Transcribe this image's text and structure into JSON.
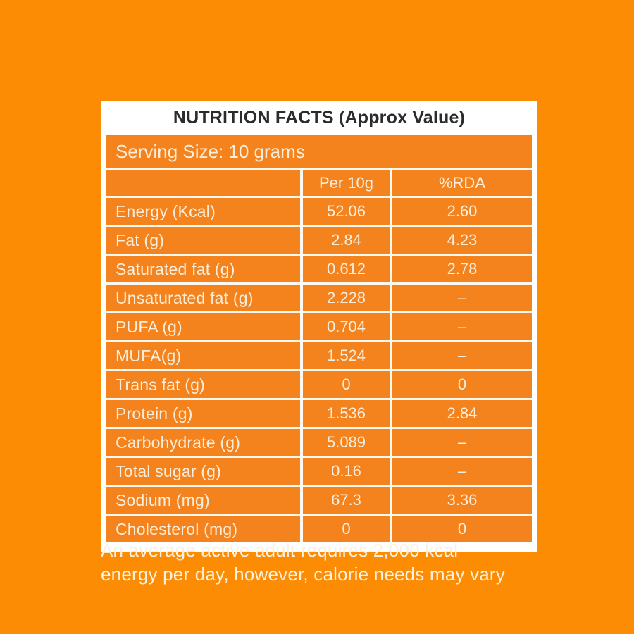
{
  "colors": {
    "page_background": "#FB8C04",
    "card_orange": "#F4831E",
    "card_border_white": "#FFFFFF",
    "grid_line": "#FDF9F1",
    "title_text": "#2B2B2B",
    "cream_text": "#F9EEDC"
  },
  "label": {
    "title": "NUTRITION FACTS (Approx Value)",
    "serving_size": "Serving Size: 10 grams",
    "columns": [
      "",
      "Per 10g",
      "%RDA"
    ],
    "rows": [
      {
        "name": "Energy (Kcal)",
        "per10g": "52.06",
        "rda": "2.60"
      },
      {
        "name": "Fat (g)",
        "per10g": "2.84",
        "rda": "4.23"
      },
      {
        "name": "Saturated fat (g)",
        "per10g": "0.612",
        "rda": "2.78"
      },
      {
        "name": "Unsaturated fat (g)",
        "per10g": "2.228",
        "rda": "–"
      },
      {
        "name": "PUFA (g)",
        "per10g": "0.704",
        "rda": "–"
      },
      {
        "name": "MUFA(g)",
        "per10g": "1.524",
        "rda": "–"
      },
      {
        "name": "Trans fat  (g)",
        "per10g": "0",
        "rda": "0"
      },
      {
        "name": "Protein (g)",
        "per10g": "1.536",
        "rda": "2.84"
      },
      {
        "name": "Carbohydrate (g)",
        "per10g": "5.089",
        "rda": "–"
      },
      {
        "name": "Total sugar (g)",
        "per10g": "0.16",
        "rda": "–"
      },
      {
        "name": "Sodium (mg)",
        "per10g": "67.3",
        "rda": "3.36"
      },
      {
        "name": "Cholesterol (mg)",
        "per10g": "0",
        "rda": "0"
      }
    ],
    "footnote_line1": "An average active adult requires 2,000 kcal",
    "footnote_line2": "energy per day, however, calorie needs may vary"
  }
}
